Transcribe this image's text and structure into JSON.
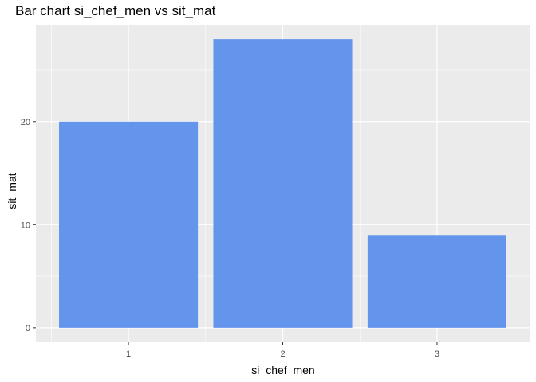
{
  "chart_data": {
    "type": "bar",
    "title": "Bar chart si_chef_men vs sit_mat",
    "xlabel": "si_chef_men",
    "ylabel": "sit_mat",
    "categories": [
      "1",
      "2",
      "3"
    ],
    "values": [
      20,
      28,
      9
    ],
    "ylim": [
      -1.4,
      29.4
    ],
    "yticks": [
      0,
      10,
      20
    ],
    "grid": true,
    "legend": "none",
    "colors": {
      "bar": "#6495ED",
      "panel": "#EBEBEB",
      "grid": "#FFFFFF"
    }
  }
}
